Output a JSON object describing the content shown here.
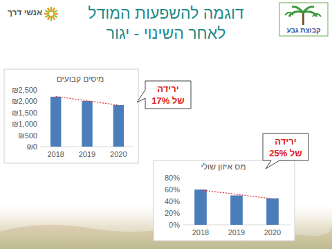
{
  "header": {
    "title": [
      "דוגמה להשפעות המודל",
      "לאחר השינוי - יגור"
    ]
  },
  "logos": [
    "קבוצת גבע",
    "אנשי דרך"
  ],
  "chart_data": [
    {
      "type": "bar",
      "title": "מיסים קבועים",
      "categories": [
        "2018",
        "2019",
        "2020"
      ],
      "series": [
        {
          "type": "bar",
          "color": "#4a7ebb",
          "values": [
            2200,
            2010,
            1830
          ]
        },
        {
          "type": "line",
          "color": "#e03030",
          "line_style": "dotted",
          "values": [
            2210,
            2020,
            1830
          ]
        }
      ],
      "ylim": [
        0,
        2500
      ],
      "yticks": [
        {
          "value": 0,
          "label": "₪0"
        },
        {
          "value": 500,
          "label": "₪500"
        },
        {
          "value": 1000,
          "label": "₪1,000"
        },
        {
          "value": 1500,
          "label": "₪1,500"
        },
        {
          "value": 2000,
          "label": "₪2,000"
        },
        {
          "value": 2500,
          "label": "₪2,500"
        }
      ],
      "grid": false,
      "annotations": [
        "ירידה",
        "של 17%"
      ]
    },
    {
      "type": "bar",
      "title": "מס איזון שולי",
      "categories": [
        "2018",
        "2019",
        "2020"
      ],
      "series": [
        {
          "type": "bar",
          "color": "#4a7ebb",
          "values": [
            60,
            50,
            45
          ]
        },
        {
          "type": "line",
          "color": "#e03030",
          "line_style": "dotted",
          "values": [
            59,
            52,
            44
          ]
        }
      ],
      "ylim": [
        0,
        80
      ],
      "yticks": [
        {
          "value": 0,
          "label": "0%"
        },
        {
          "value": 20,
          "label": "20%"
        },
        {
          "value": 40,
          "label": "40%"
        },
        {
          "value": 60,
          "label": "60%"
        },
        {
          "value": 80,
          "label": "80%"
        }
      ],
      "grid": false,
      "annotations": [
        "ירידה",
        "של 25%"
      ]
    }
  ]
}
